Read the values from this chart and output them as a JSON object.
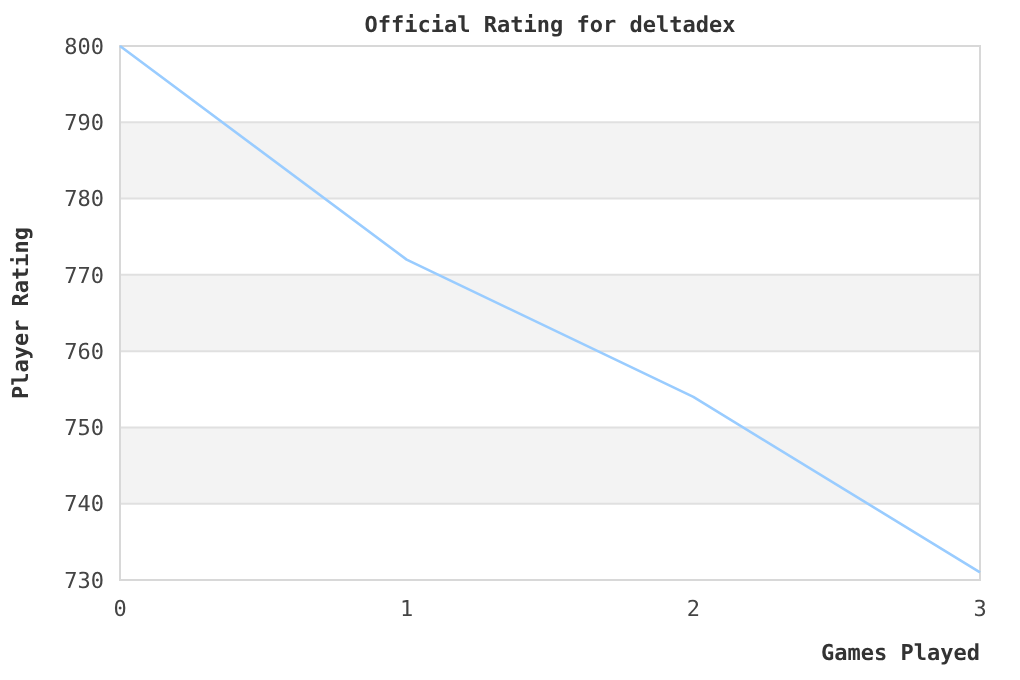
{
  "chart_data": {
    "type": "line",
    "title": "Official Rating for deltadex",
    "xlabel": "Games Played",
    "ylabel": "Player Rating",
    "x": [
      0,
      1,
      2,
      3
    ],
    "series": [
      {
        "color": "#99ccff",
        "values": [
          800,
          772,
          754,
          731
        ]
      }
    ],
    "xlim": [
      0,
      3
    ],
    "xticks": [
      0,
      1,
      2,
      3
    ],
    "ylim": [
      730,
      800
    ],
    "yticks": [
      730,
      740,
      750,
      760,
      770,
      780,
      790,
      800
    ],
    "grid": "y",
    "marker": "none"
  }
}
